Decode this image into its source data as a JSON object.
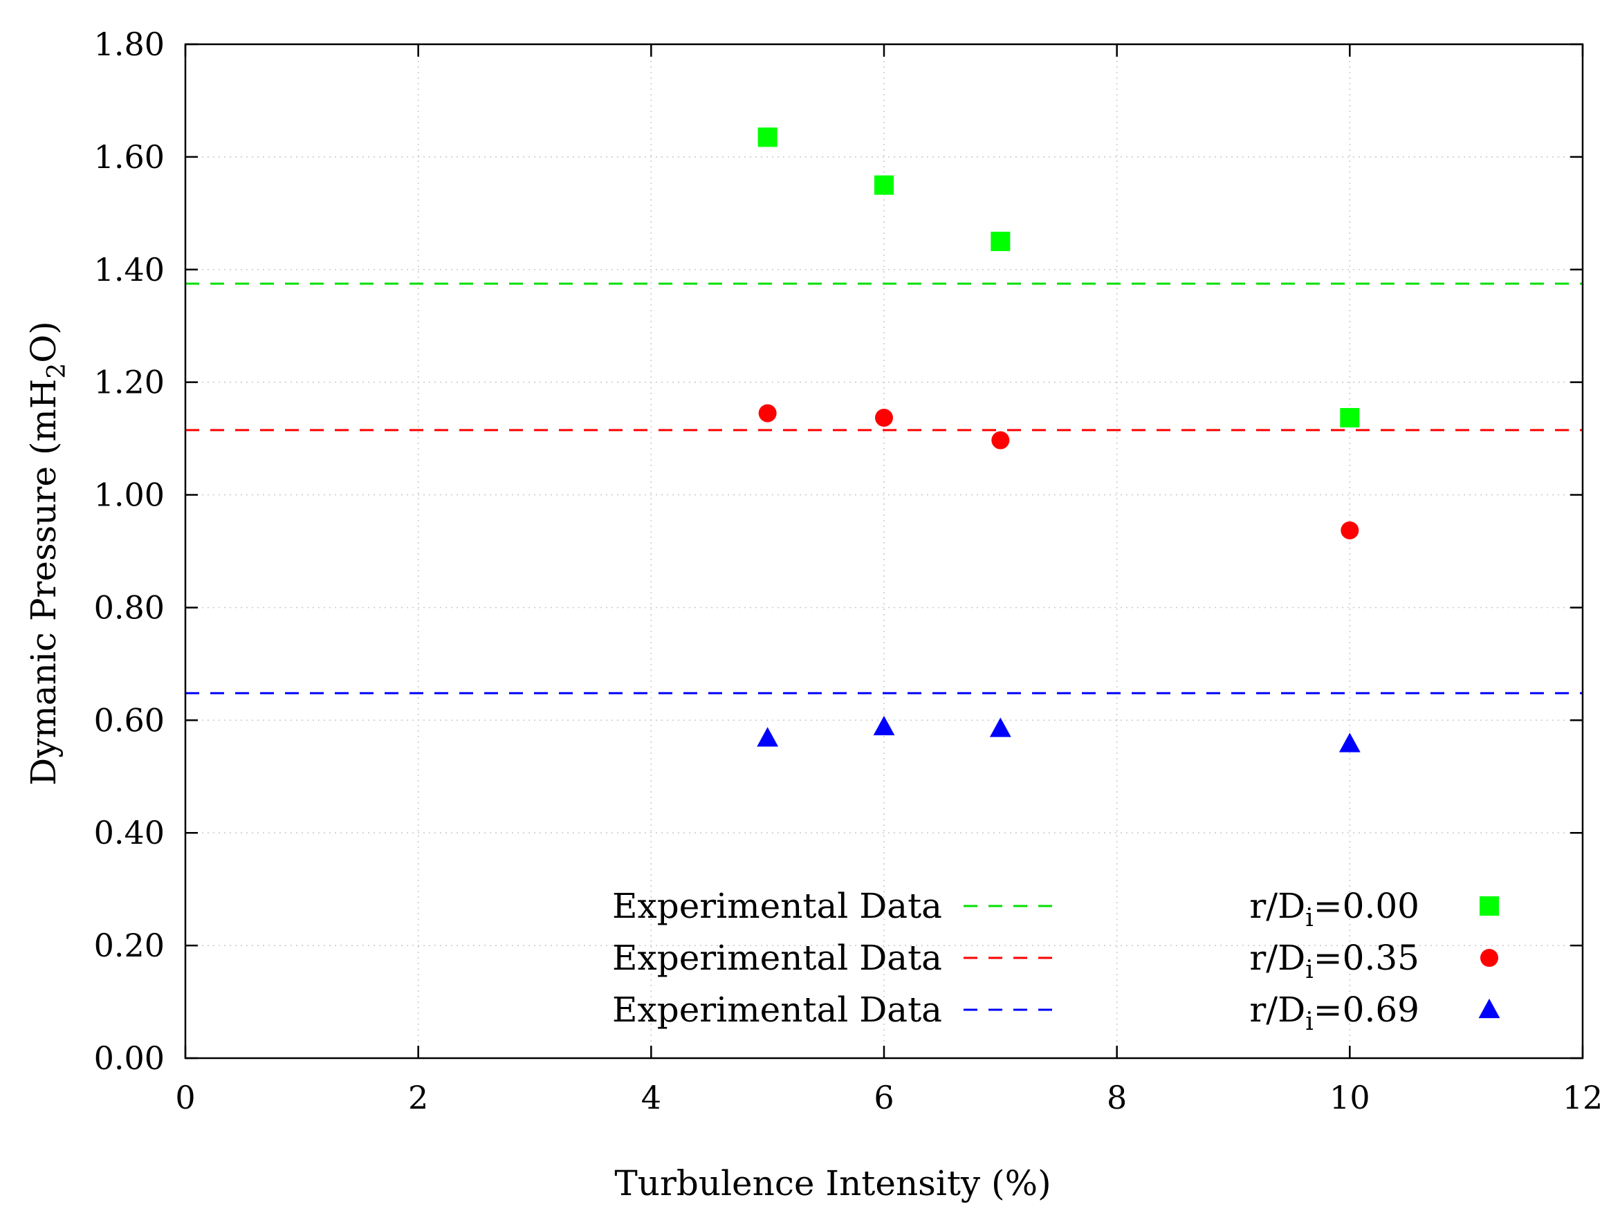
{
  "chart_data": {
    "type": "scatter",
    "title": "",
    "xlabel": "Turbulence Intensity (%)",
    "ylabel": {
      "prefix": "Dymanic Pressure (mH",
      "sub": "2",
      "suffix": "O)"
    },
    "xlim": [
      0,
      12
    ],
    "ylim": [
      0,
      1.8
    ],
    "xticks": [
      0,
      2,
      4,
      6,
      8,
      10,
      12
    ],
    "yticks": [
      0.0,
      0.2,
      0.4,
      0.6,
      0.8,
      1.0,
      1.2,
      1.4,
      1.6,
      1.8
    ],
    "x_tick_labels": [
      "0",
      "2",
      "4",
      "6",
      "8",
      "10",
      "12"
    ],
    "y_tick_labels": [
      "0.00",
      "0.20",
      "0.40",
      "0.60",
      "0.80",
      "1.00",
      "1.20",
      "1.40",
      "1.60",
      "1.80"
    ],
    "grid": true,
    "legend_position": "bottom-right",
    "reference_lines": [
      {
        "name": "Experimental Data",
        "y": 1.375,
        "color": "#00e000"
      },
      {
        "name": "Experimental Data",
        "y": 1.115,
        "color": "#ff0000"
      },
      {
        "name": "Experimental Data",
        "y": 0.648,
        "color": "#0000ff"
      }
    ],
    "series": [
      {
        "label": {
          "prefix": "r/D",
          "sub": "i",
          "suffix": "=0.00"
        },
        "marker": "square",
        "color": "#00ff00",
        "x": [
          5,
          6,
          7,
          10
        ],
        "y": [
          1.635,
          1.55,
          1.45,
          1.137
        ]
      },
      {
        "label": {
          "prefix": "r/D",
          "sub": "i",
          "suffix": "=0.35"
        },
        "marker": "circle",
        "color": "#ff0000",
        "x": [
          5,
          6,
          7,
          10
        ],
        "y": [
          1.145,
          1.137,
          1.097,
          0.937
        ]
      },
      {
        "label": {
          "prefix": "r/D",
          "sub": "i",
          "suffix": "=0.69"
        },
        "marker": "triangle",
        "color": "#0000ff",
        "x": [
          5,
          6,
          7,
          10
        ],
        "y": [
          0.568,
          0.588,
          0.585,
          0.558
        ]
      }
    ]
  }
}
